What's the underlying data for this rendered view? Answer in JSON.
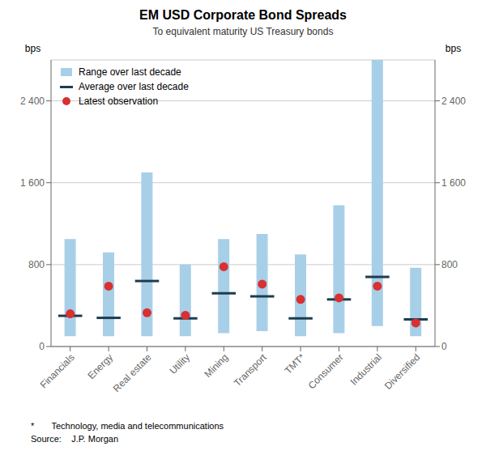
{
  "chart_data": {
    "type": "range_bar",
    "title": "EM USD Corporate Bond Spreads",
    "subtitle": "To equivalent maturity US Treasury bonds",
    "ylabel": "bps",
    "y2label": "bps",
    "categories": [
      "Financials",
      "Energy",
      "Real estate",
      "Utility",
      "Mining",
      "Transport",
      "TMT*",
      "Consumer",
      "Industrial",
      "Diversified"
    ],
    "series": [
      {
        "name": "Range over last decade",
        "type": "range",
        "color": "#a8cfe8",
        "low": [
          100,
          100,
          100,
          100,
          130,
          150,
          100,
          130,
          200,
          100
        ],
        "high": [
          1050,
          920,
          1700,
          800,
          1050,
          1100,
          900,
          1380,
          2800,
          770
        ]
      },
      {
        "name": "Average over last decade",
        "type": "tick",
        "color": "#1c3d4f",
        "line_style": "solid",
        "values": [
          300,
          280,
          640,
          275,
          520,
          490,
          275,
          460,
          680,
          265
        ]
      },
      {
        "name": "Latest observation",
        "type": "scatter",
        "color": "#d93030",
        "marker": "circle",
        "values": [
          320,
          590,
          330,
          305,
          780,
          610,
          460,
          475,
          590,
          230
        ]
      }
    ],
    "ylim": [
      0,
      2800
    ],
    "yticks": [
      0,
      800,
      {
        "value": 1600,
        "label": "1 600"
      },
      {
        "value": 2400,
        "label": "2 400"
      }
    ],
    "y2lim": [
      0,
      2800
    ],
    "y2ticks": [
      0,
      800,
      {
        "value": 1600,
        "label": "1 600"
      },
      {
        "value": 2400,
        "label": "2 400"
      }
    ],
    "grid": true,
    "legend": "upper left",
    "annotations": [
      "*       Technology, media and telecommunications",
      "Source:    J.P. Morgan"
    ]
  }
}
